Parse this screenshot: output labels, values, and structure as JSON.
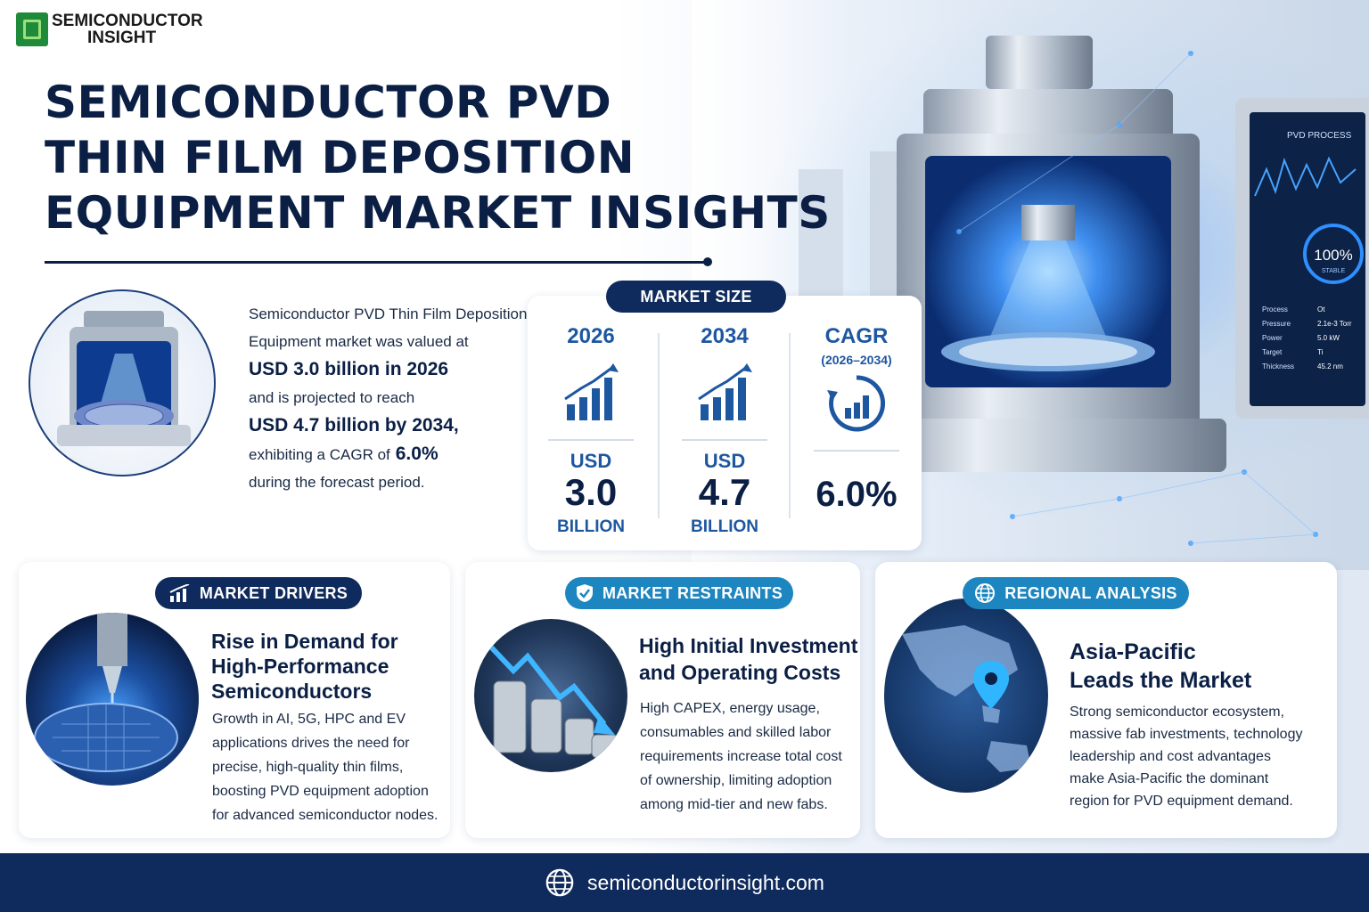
{
  "brand": {
    "line1": "SEMICONDUCTOR",
    "line2": "INSIGHT"
  },
  "title": {
    "line1": "SEMICONDUCTOR PVD",
    "line2": "THIN FILM DEPOSITION",
    "line3": "EQUIPMENT MARKET INSIGHTS"
  },
  "intro": {
    "l1": "Semiconductor PVD Thin Film Deposition",
    "l2": "Equipment market was valued at",
    "l3": "USD 3.0 billion in 2026",
    "l4": "and is projected to reach",
    "l5": "USD 4.7 billion by 2034,",
    "l6": "exhibiting a CAGR of",
    "l6_value": "6.0%",
    "l7": "during the forecast period."
  },
  "market_size": {
    "label": "MARKET SIZE",
    "col2026": {
      "year": "2026",
      "usd": "USD",
      "value": "3.0",
      "unit": "BILLION"
    },
    "col2034": {
      "year": "2034",
      "usd": "USD",
      "value": "4.7",
      "unit": "BILLION"
    },
    "cagr": {
      "label": "CAGR",
      "range": "(2026–2034)",
      "value": "6.0%"
    }
  },
  "screen": {
    "title": "PVD PROCESS",
    "gauge": "100%",
    "gauge_sub": "STABLE",
    "rows": [
      {
        "k": "Process",
        "v": "Ot"
      },
      {
        "k": "Pressure",
        "v": "2.1e-3 Torr"
      },
      {
        "k": "Power",
        "v": "5.0 kW"
      },
      {
        "k": "Target",
        "v": "Ti"
      },
      {
        "k": "Thickness",
        "v": "45.2 nm"
      }
    ]
  },
  "drivers": {
    "label": "MARKET DRIVERS",
    "h1": "Rise in Demand for",
    "h2": "High-Performance",
    "h3": "Semiconductors",
    "p1": "Growth in AI, 5G, HPC and EV",
    "p2": "applications drives the need for",
    "p3": "precise, high-quality thin films,",
    "p4": "boosting PVD equipment adoption",
    "p5": "for advanced semiconductor nodes."
  },
  "restraints": {
    "label": "MARKET RESTRAINTS",
    "h1": "High Initial Investment",
    "h2": "and Operating Costs",
    "p1": "High CAPEX, energy usage,",
    "p2": "consumables and skilled labor",
    "p3": "requirements increase total cost",
    "p4": "of ownership, limiting adoption",
    "p5": "among mid-tier and new fabs."
  },
  "regional": {
    "label": "REGIONAL ANALYSIS",
    "h1": "Asia-Pacific",
    "h2": "Leads the Market",
    "p1": "Strong semiconductor ecosystem,",
    "p2": "massive fab investments, technology",
    "p3": "leadership and cost advantages",
    "p4": "make Asia-Pacific the dominant",
    "p5": "region for PVD equipment demand."
  },
  "footer": {
    "url": "semiconductorinsight.com"
  },
  "colors": {
    "navy": "#0f2a5c",
    "teal": "#1d86c0",
    "accent_blue": "#1d57a0",
    "logo_green": "#1f8a3a"
  }
}
